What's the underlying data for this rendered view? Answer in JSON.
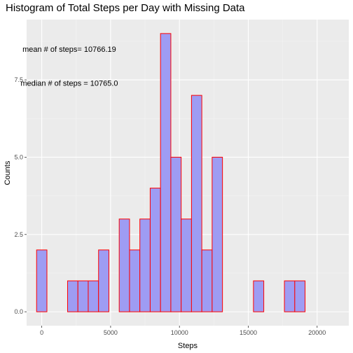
{
  "chart_data": {
    "type": "bar",
    "title": "Histogram of Total Steps per Day with Missing Data",
    "xlabel": "Steps",
    "ylabel": "Counts",
    "bin_width": 750,
    "bin_starts": [
      -375,
      375,
      1125,
      1875,
      2625,
      3375,
      4125,
      4875,
      5625,
      6375,
      7125,
      7875,
      8625,
      9375,
      10125,
      10875,
      11625,
      12375,
      13125,
      13875,
      14625,
      15375,
      16125,
      16875,
      17625,
      18375,
      19125,
      19875,
      20625
    ],
    "values": [
      2,
      0,
      0,
      1,
      1,
      1,
      2,
      0,
      3,
      2,
      3,
      4,
      9,
      5,
      3,
      7,
      2,
      5,
      0,
      0,
      0,
      1,
      0,
      0,
      1,
      1,
      0,
      0,
      0
    ],
    "xlim": [
      -1100,
      22300
    ],
    "ylim": [
      -0.45,
      9.45
    ],
    "x_ticks": [
      0,
      5000,
      10000,
      15000,
      20000
    ],
    "x_tick_labels": [
      "0",
      "5000",
      "10000",
      "15000",
      "20000"
    ],
    "y_ticks": [
      0,
      2.5,
      5,
      7.5
    ],
    "y_tick_labels": [
      "0.0",
      "2.5",
      "5.0",
      "7.5"
    ],
    "grid": true,
    "legend": "none",
    "colors": {
      "panel": "#ebebeb",
      "grid_major": "#ffffff",
      "bar_fill": "#9e9cf3",
      "bar_outline": "#ff0000"
    },
    "annotations": [
      {
        "text": "mean # of steps= 10766.19",
        "x": 2000,
        "y": 8.5
      },
      {
        "text": "median # of steps = 10765.0",
        "x": 2000,
        "y": 7.4
      }
    ]
  }
}
